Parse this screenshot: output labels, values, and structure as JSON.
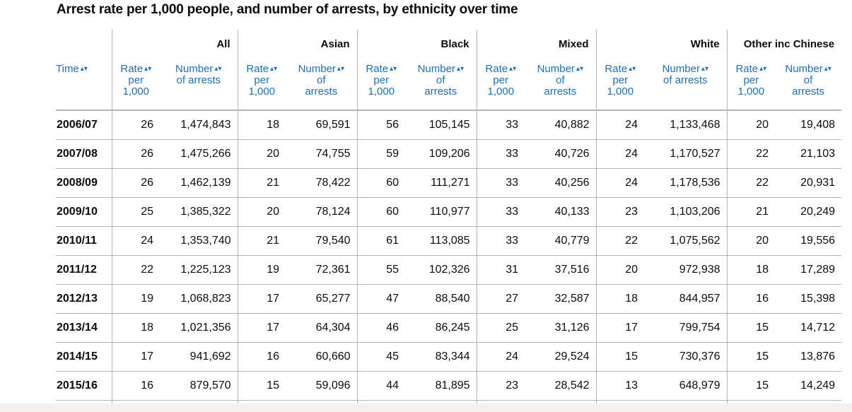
{
  "caption": "Arrest rate per 1,000 people, and number of arrests, by ethnicity over time",
  "headers": {
    "time": "Time",
    "sort_icon": "▴▾",
    "groups": [
      "All",
      "Asian",
      "Black",
      "Mixed",
      "White",
      "Other inc Chinese"
    ],
    "sub": [
      {
        "rate": [
          "Rate",
          "per",
          "1,000"
        ],
        "number": [
          "Number",
          "of arrests"
        ]
      },
      {
        "rate": [
          "Rate",
          "per",
          "1,000"
        ],
        "number": [
          "Number",
          "of",
          "arrests"
        ]
      },
      {
        "rate": [
          "Rate",
          "per",
          "1,000"
        ],
        "number": [
          "Number",
          "of",
          "arrests"
        ]
      },
      {
        "rate": [
          "Rate",
          "per",
          "1,000"
        ],
        "number": [
          "Number",
          "of",
          "arrests"
        ]
      },
      {
        "rate": [
          "Rate",
          "per",
          "1,000"
        ],
        "number": [
          "Number",
          "of arrests"
        ]
      },
      {
        "rate": [
          "Rate",
          "per",
          "1,000"
        ],
        "number": [
          "Number",
          "of",
          "arrests"
        ]
      }
    ]
  },
  "rows": [
    [
      "2006/07",
      "26",
      "1,474,843",
      "18",
      "69,591",
      "56",
      "105,145",
      "33",
      "40,882",
      "24",
      "1,133,468",
      "20",
      "19,408"
    ],
    [
      "2007/08",
      "26",
      "1,475,266",
      "20",
      "74,755",
      "59",
      "109,206",
      "33",
      "40,726",
      "24",
      "1,170,527",
      "22",
      "21,103"
    ],
    [
      "2008/09",
      "26",
      "1,462,139",
      "21",
      "78,422",
      "60",
      "111,271",
      "33",
      "40,256",
      "24",
      "1,178,536",
      "22",
      "20,931"
    ],
    [
      "2009/10",
      "25",
      "1,385,322",
      "20",
      "78,124",
      "60",
      "110,977",
      "33",
      "40,133",
      "23",
      "1,103,206",
      "21",
      "20,249"
    ],
    [
      "2010/11",
      "24",
      "1,353,740",
      "21",
      "79,540",
      "61",
      "113,085",
      "33",
      "40,779",
      "22",
      "1,075,562",
      "20",
      "19,556"
    ],
    [
      "2011/12",
      "22",
      "1,225,123",
      "19",
      "72,361",
      "55",
      "102,326",
      "31",
      "37,516",
      "20",
      "972,938",
      "18",
      "17,289"
    ],
    [
      "2012/13",
      "19",
      "1,068,823",
      "17",
      "65,277",
      "47",
      "88,540",
      "27",
      "32,587",
      "18",
      "844,957",
      "16",
      "15,398"
    ],
    [
      "2013/14",
      "18",
      "1,021,356",
      "17",
      "64,304",
      "46",
      "86,245",
      "25",
      "31,126",
      "17",
      "799,754",
      "15",
      "14,712"
    ],
    [
      "2014/15",
      "17",
      "941,692",
      "16",
      "60,660",
      "45",
      "83,344",
      "24",
      "29,524",
      "15",
      "730,376",
      "15",
      "13,876"
    ],
    [
      "2015/16",
      "16",
      "879,570",
      "15",
      "59,096",
      "44",
      "81,895",
      "23",
      "28,542",
      "13",
      "648,979",
      "15",
      "14,249"
    ]
  ]
}
